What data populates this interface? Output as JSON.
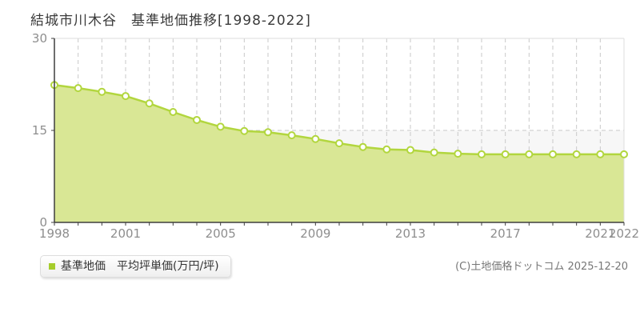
{
  "title": "結城市川木谷　基準地価推移[1998-2022]",
  "legend": {
    "label": "基準地価　平均坪単価(万円/坪)",
    "swatch_color": "#a6cd2c"
  },
  "footer": {
    "copyright": "(C)土地価格ドットコム 2025-12-20"
  },
  "chart_data": {
    "type": "area",
    "title": "結城市川木谷 基準地価推移[1998-2022]",
    "xlabel": "",
    "ylabel": "平均坪単価(万円/坪)",
    "x": [
      1998,
      1999,
      2000,
      2001,
      2002,
      2003,
      2004,
      2005,
      2006,
      2007,
      2008,
      2009,
      2010,
      2011,
      2012,
      2013,
      2014,
      2015,
      2016,
      2017,
      2018,
      2019,
      2020,
      2021,
      2022
    ],
    "series": [
      {
        "name": "基準地価 平均坪単価(万円/坪)",
        "values": [
          22.4,
          21.9,
          21.3,
          20.6,
          19.4,
          18.0,
          16.7,
          15.6,
          14.9,
          14.7,
          14.2,
          13.6,
          12.9,
          12.3,
          11.9,
          11.8,
          11.4,
          11.2,
          11.1,
          11.1,
          11.1,
          11.1,
          11.1,
          11.1,
          11.1
        ]
      }
    ],
    "ylim": [
      0,
      30
    ],
    "y_ticks": [
      0,
      15,
      30
    ],
    "x_tick_labels": [
      1998,
      2001,
      2005,
      2009,
      2013,
      2017,
      2021,
      2022
    ],
    "grid": "dashed vertical per year, dashed horizontal at 15",
    "legend_position": "bottom-left",
    "colors": {
      "area_fill": "#d9e795",
      "line": "#b2d63e",
      "marker_fill": "#ffffff",
      "band_low": "#f7f7f7",
      "grid": "#c9c9c9",
      "border": "#dddddd",
      "axis": "#3f3f3f",
      "tick_label": "#8e8e8e"
    }
  }
}
